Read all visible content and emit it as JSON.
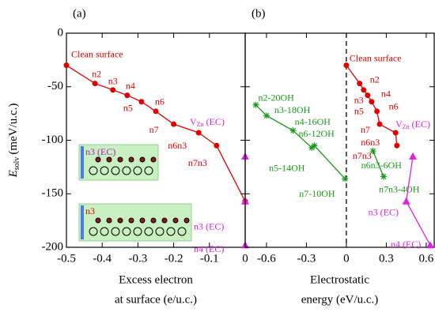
{
  "chart_data": [
    {
      "type": "line",
      "panel_label": "(a)",
      "ylabel": {
        "symbol": "E",
        "subscript": "solv",
        "unit": "(meV/u.c.)"
      },
      "xlabel": [
        "Excess electron",
        "at surface (e/u.c.)"
      ],
      "xlim": [
        -0.5,
        0
      ],
      "ylim": [
        -200,
        0
      ],
      "xticks": [
        -0.5,
        -0.4,
        -0.3,
        -0.2,
        -0.1,
        0
      ],
      "yticks": [
        0,
        -50,
        -100,
        -150,
        -200
      ],
      "insets": [
        {
          "label": "n3 (EC)",
          "color": "#b020c0"
        },
        {
          "label": "n3",
          "color": "#e00000"
        }
      ],
      "series": [
        {
          "color": "#e00000",
          "marker": "circle",
          "line": true,
          "x": [
            -0.5,
            -0.42,
            -0.37,
            -0.33,
            -0.29,
            -0.25,
            -0.2,
            -0.13,
            -0.08,
            0
          ],
          "values": [
            -30,
            -47,
            -53,
            -58,
            -64,
            -73,
            -85,
            -93,
            -105,
            -157
          ],
          "point_labels": [
            "Clean surface",
            "n2",
            "n3",
            "n4",
            "n5",
            "n6",
            "n7",
            "n6n3",
            "n7n3",
            null
          ]
        },
        {
          "color": "#e020e0",
          "marker": "triangle",
          "line": false,
          "x": [
            0,
            0,
            0
          ],
          "values": [
            -115,
            -157,
            -198
          ],
          "point_labels": [
            {
              "main": "V",
              "sub": "Zn",
              "rest": " (EC)"
            },
            "n3 (EC)",
            "n4 (EC)"
          ]
        }
      ]
    },
    {
      "type": "line",
      "panel_label": "(b)",
      "xlabel": [
        "Electrostatic",
        "energy (eV/u.c.)"
      ],
      "xlim": [
        -0.76,
        0.66
      ],
      "ylim": [
        -200,
        0
      ],
      "xticks": [
        -0.6,
        -0.3,
        0,
        0.3,
        0.6
      ],
      "yticks": [
        0,
        -50,
        -100,
        -150,
        -200
      ],
      "vline": 0,
      "series": [
        {
          "color": "#e00000",
          "marker": "circle",
          "line": true,
          "x": [
            0,
            0.1,
            0.13,
            0.16,
            0.19,
            0.23,
            0.25,
            0.37,
            0.38
          ],
          "values": [
            -30,
            -47,
            -53,
            -58,
            -64,
            -73,
            -85,
            -93,
            -105
          ],
          "point_labels": [
            "Clean surface",
            "n2",
            "n3",
            "n4",
            "n5",
            "n6",
            "n7",
            "n6n3",
            "n7n3"
          ]
        },
        {
          "color": "#1a9a1a",
          "marker": "star",
          "line": true,
          "x": [
            -0.68,
            -0.6,
            -0.4,
            -0.26,
            -0.24,
            -0.01
          ],
          "values": [
            -67,
            -77,
            -91,
            -107,
            -105,
            -136
          ],
          "point_labels": [
            "n2-20OH",
            "n3-18OH",
            "n4-16OH",
            "n5-14OH",
            "n6-12OH",
            "n7-10OH"
          ]
        },
        {
          "color": "#1a9a1a",
          "marker": "star",
          "line": true,
          "x": [
            0.2,
            0.28
          ],
          "values": [
            -110,
            -134
          ],
          "point_labels": [
            "n6n3-6OH",
            "n7n3-4OH"
          ]
        },
        {
          "color": "#e020e0",
          "marker": "triangle",
          "line": true,
          "x": [
            0.5,
            0.45,
            0.63
          ],
          "values": [
            -115,
            -157,
            -198
          ],
          "point_labels": [
            {
              "main": "V",
              "sub": "Zn",
              "rest": " (EC)"
            },
            "n3 (EC)",
            "n4 (EC)"
          ]
        }
      ]
    }
  ]
}
